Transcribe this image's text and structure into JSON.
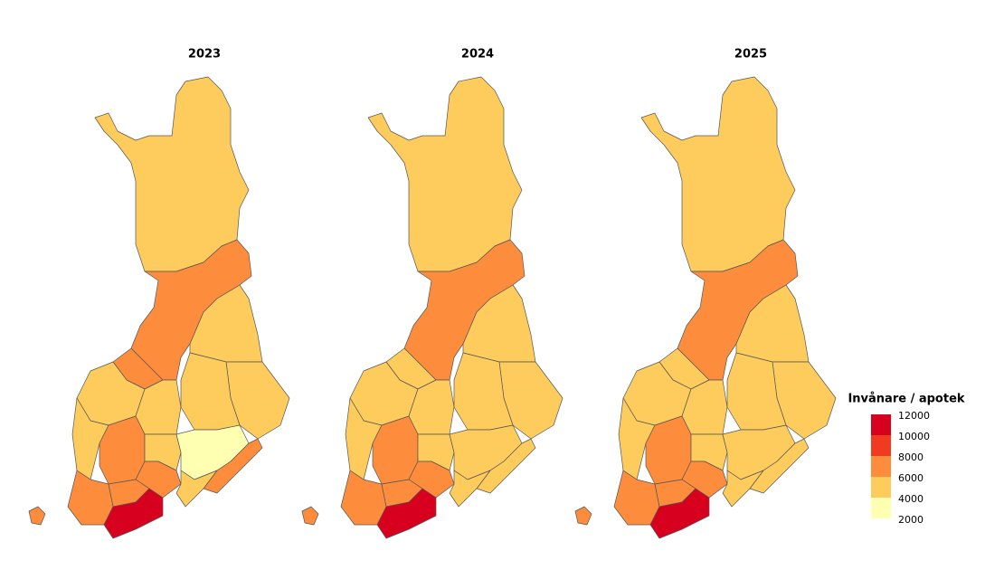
{
  "chart_data": {
    "type": "choropleth",
    "maps": [
      {
        "title": "2023",
        "values": [
          5000,
          7000,
          5000,
          5000,
          5000,
          7000,
          5000,
          5000,
          5000,
          7000,
          5000,
          3000,
          7000,
          7000,
          5000,
          7000,
          7000,
          11000,
          7000
        ]
      },
      {
        "title": "2024",
        "values": [
          5000,
          7000,
          5000,
          5000,
          5000,
          5000,
          5000,
          5000,
          5000,
          7000,
          5000,
          5000,
          5000,
          7000,
          5000,
          7000,
          7000,
          11000,
          7000
        ]
      },
      {
        "title": "2025",
        "values": [
          5000,
          7000,
          5000,
          5000,
          5000,
          5000,
          5000,
          5000,
          5000,
          7000,
          5000,
          5000,
          5000,
          7000,
          5000,
          7000,
          7000,
          11000,
          7000
        ]
      }
    ],
    "legend": {
      "title": "Invånare / apotek",
      "breaks": [
        12000,
        10000,
        8000,
        6000,
        4000,
        2000
      ],
      "colors": [
        "#d7001f",
        "#f03b20",
        "#fd8d3c",
        "#fecc5c",
        "#ffffb2"
      ]
    }
  }
}
